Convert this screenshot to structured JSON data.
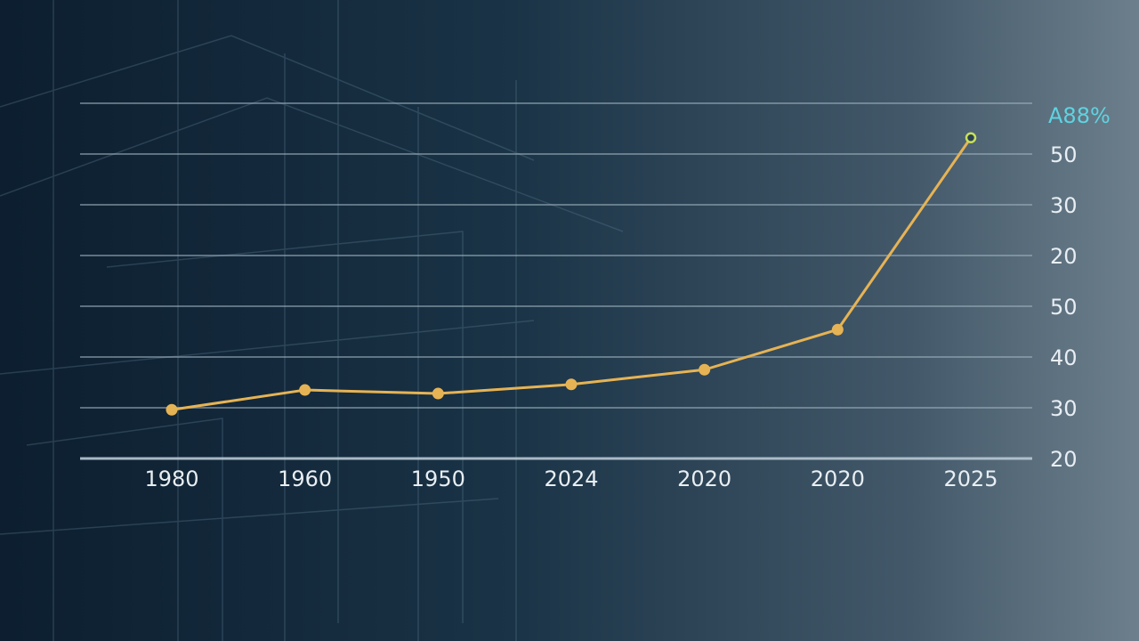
{
  "chart_data": {
    "type": "line",
    "categories": [
      "1980",
      "1960",
      "1950",
      "2024",
      "2020",
      "2020",
      "2025"
    ],
    "series": [
      {
        "color": "#e6b354",
        "values": [
          29.6,
          33.5,
          32.8,
          34.6,
          37.5,
          45.4,
          83.2
        ]
      }
    ],
    "ylim": [
      20,
      90
    ],
    "yticks": [
      20,
      30,
      40,
      50,
      {
        "value": 60,
        "label": "20"
      },
      {
        "value": 70,
        "label": "30"
      },
      {
        "value": 80,
        "label": "50"
      },
      {
        "value": 90,
        "label": "A88%"
      }
    ],
    "grid": true
  }
}
